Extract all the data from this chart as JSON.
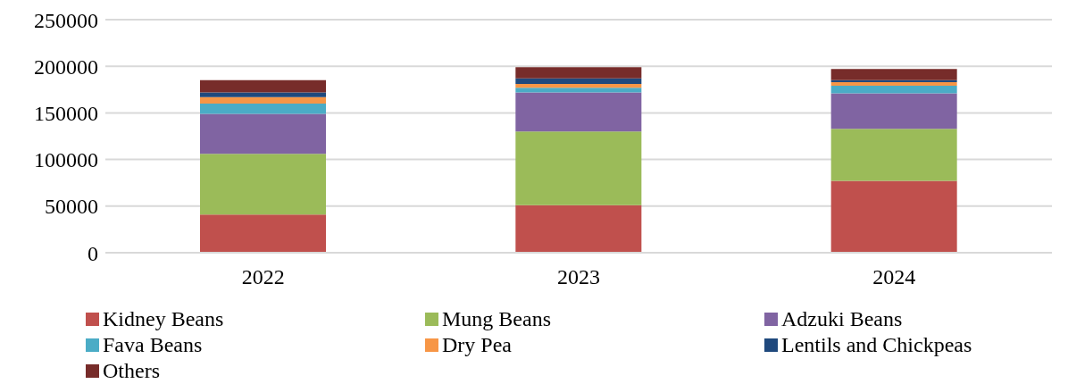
{
  "chart_data": {
    "type": "bar",
    "stacked": true,
    "categories": [
      "2022",
      "2023",
      "2024"
    ],
    "series": [
      {
        "name": "Kidney Beans",
        "color": "#c0504d",
        "values": [
          41000,
          51000,
          77000
        ]
      },
      {
        "name": "Mung Beans",
        "color": "#9bbb59",
        "values": [
          65000,
          79000,
          56000
        ]
      },
      {
        "name": "Adzuki Beans",
        "color": "#8064a2",
        "values": [
          43000,
          42000,
          38000
        ]
      },
      {
        "name": "Fava Beans",
        "color": "#4bacc6",
        "values": [
          11000,
          5000,
          8000
        ]
      },
      {
        "name": "Dry Pea",
        "color": "#f79646",
        "values": [
          7000,
          4000,
          4000
        ]
      },
      {
        "name": "Lentils and Chickpeas",
        "color": "#1f497d",
        "values": [
          5000,
          6000,
          2000
        ]
      },
      {
        "name": "Others",
        "color": "#772c2a",
        "values": [
          13000,
          12000,
          12000
        ]
      }
    ],
    "ylim": [
      0,
      250000
    ],
    "yticks": [
      0,
      50000,
      100000,
      150000,
      200000,
      250000
    ],
    "grid": "y",
    "legend": "bottom"
  }
}
